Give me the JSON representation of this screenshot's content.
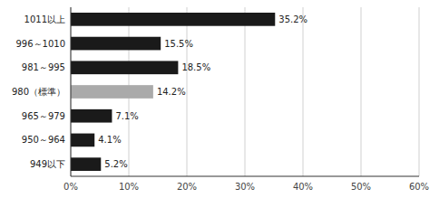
{
  "chart_data": {
    "type": "bar",
    "orientation": "horizontal",
    "categories": [
      "1011以上",
      "996～1010",
      "981～995",
      "980（標準）",
      "965～979",
      "950～964",
      "949以下"
    ],
    "values": [
      35.2,
      15.5,
      18.5,
      14.2,
      7.1,
      4.1,
      5.2
    ],
    "value_labels": [
      "35.2%",
      "15.5%",
      "18.5%",
      "14.2%",
      "7.1%",
      "4.1%",
      "5.2%"
    ],
    "data_labels": true,
    "colors": [
      "#1a1a1a",
      "#1a1a1a",
      "#1a1a1a",
      "#aaaaaa",
      "#1a1a1a",
      "#1a1a1a",
      "#1a1a1a"
    ],
    "xlim": [
      0,
      60
    ],
    "xticks": [
      {
        "value": 0,
        "label": "0%"
      },
      {
        "value": 10,
        "label": "10%"
      },
      {
        "value": 20,
        "label": "20%"
      },
      {
        "value": 30,
        "label": "30%"
      },
      {
        "value": 40,
        "label": "40%"
      },
      {
        "value": 50,
        "label": "50%"
      },
      {
        "value": 60,
        "label": "60%"
      }
    ],
    "grid": true
  }
}
